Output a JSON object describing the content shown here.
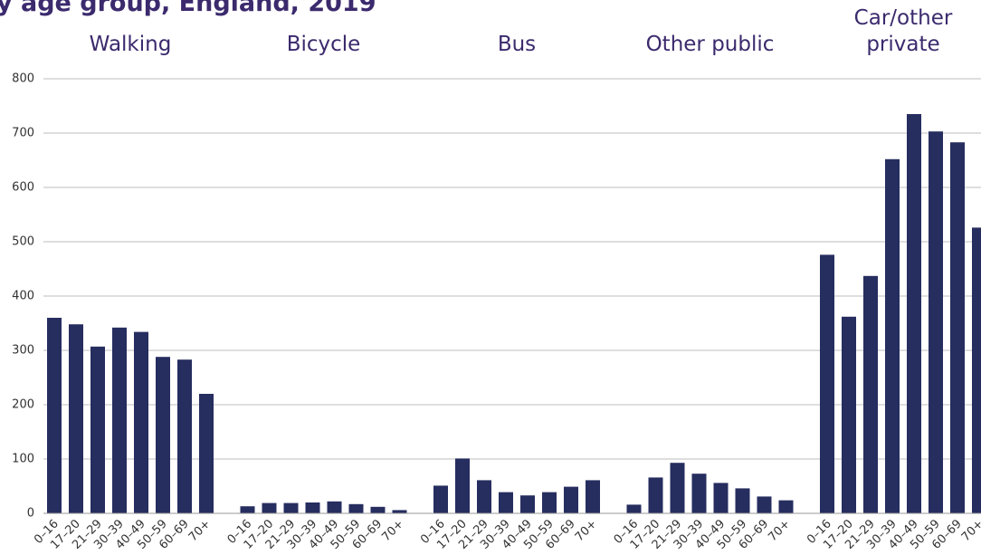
{
  "chart_data": {
    "type": "bar",
    "title": "y age group, England, 2019",
    "categories": [
      "0–16",
      "17–20",
      "21–29",
      "30–39",
      "40–49",
      "50–59",
      "60–69",
      "70+"
    ],
    "color": "#262d5f",
    "groups": [
      {
        "name": "Walking",
        "values": [
          360,
          348,
          307,
          342,
          334,
          288,
          283,
          220
        ]
      },
      {
        "name": "Bicycle",
        "values": [
          13,
          19,
          19,
          20,
          22,
          17,
          12,
          6
        ]
      },
      {
        "name": "Bus",
        "values": [
          51,
          101,
          61,
          39,
          33,
          39,
          49,
          61
        ]
      },
      {
        "name": "Other public",
        "values": [
          16,
          66,
          93,
          73,
          56,
          46,
          31,
          24
        ]
      },
      {
        "name": "Car/other private",
        "values": [
          476,
          362,
          437,
          652,
          735,
          703,
          683,
          526
        ]
      }
    ],
    "ylim": [
      0,
      800
    ],
    "yticks": [
      0,
      100,
      200,
      300,
      400,
      500,
      600,
      700,
      800
    ],
    "grid": true
  }
}
